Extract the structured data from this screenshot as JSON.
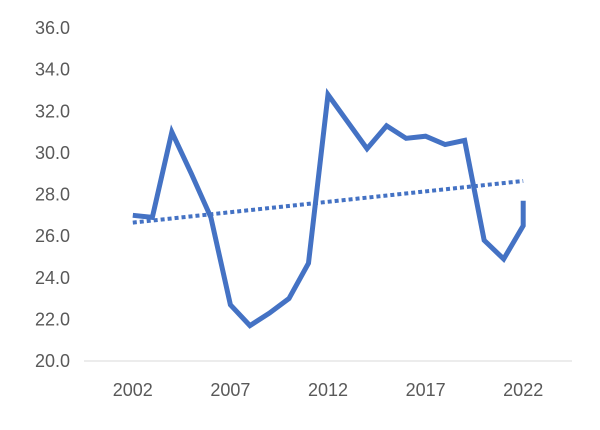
{
  "chart_data": {
    "type": "line",
    "title": "",
    "xlabel": "",
    "ylabel": "",
    "xlim": [
      1999.5,
      2024.5
    ],
    "ylim": [
      20.0,
      36.0
    ],
    "x_ticks": [
      2002,
      2007,
      2012,
      2017,
      2022
    ],
    "x_tick_labels": [
      "2002",
      "2007",
      "2012",
      "2017",
      "2022"
    ],
    "y_ticks": [
      20,
      22,
      24,
      26,
      28,
      30,
      32,
      34,
      36
    ],
    "y_tick_labels": [
      "20.0",
      "22.0",
      "24.0",
      "26.0",
      "28.0",
      "30.0",
      "32.0",
      "34.0",
      "36.0"
    ],
    "grid": false,
    "legend": "none",
    "series": [
      {
        "style": "solid",
        "color": "#4472C4",
        "x": [
          2002,
          2003,
          2004,
          2005,
          2006,
          2007,
          2008,
          2009,
          2010,
          2011,
          2012,
          2013,
          2014,
          2015,
          2016,
          2017,
          2018,
          2019,
          2020,
          2021,
          2022,
          2022
        ],
        "y": [
          27.0,
          26.9,
          31.0,
          29.0,
          26.9,
          22.7,
          21.7,
          22.3,
          23.0,
          24.7,
          32.8,
          31.5,
          30.2,
          31.3,
          30.7,
          30.8,
          30.4,
          30.6,
          25.8,
          24.9,
          26.5,
          27.7
        ]
      },
      {
        "style": "dotted",
        "color": "#4472C4",
        "trendline": "linear",
        "x": [
          2002,
          2022
        ],
        "y": [
          26.65,
          28.65
        ]
      }
    ]
  }
}
